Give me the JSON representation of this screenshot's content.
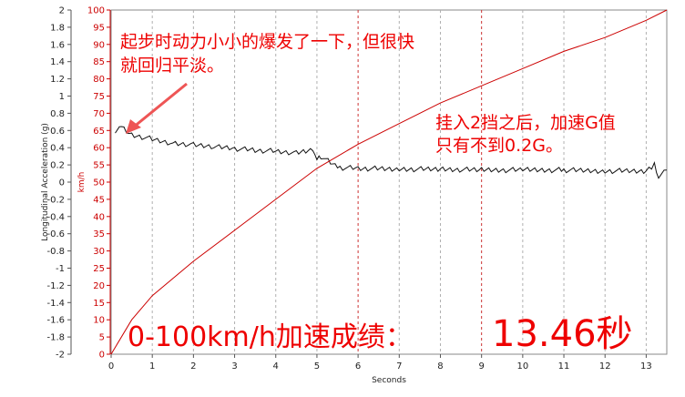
{
  "chart_data": {
    "type": "line",
    "xlabel": "Seconds",
    "xlim": [
      0,
      13.5
    ],
    "x_ticks": [
      "0",
      "1",
      "2",
      "3",
      "4",
      "5",
      "6",
      "7",
      "8",
      "9",
      "10",
      "11",
      "12",
      "13"
    ],
    "y_left": {
      "label": "Longitudinal Acceleration (g)",
      "range": [
        -2,
        2
      ],
      "ticks": [
        "2",
        "1.8",
        "1.6",
        "1.4",
        "1.2",
        "1",
        "0.8",
        "0.6",
        "0.4",
        "0.2",
        "0",
        "-0.2",
        "-0.4",
        "-0.6",
        "-0.8",
        "-1",
        "-1.2",
        "-1.4",
        "-1.6",
        "-1.8",
        "-2"
      ]
    },
    "y_right": {
      "label": "km/h",
      "range": [
        0,
        100
      ],
      "ticks": [
        "100",
        "95",
        "90",
        "85",
        "80",
        "75",
        "70",
        "65",
        "60",
        "55",
        "50",
        "45",
        "40",
        "35",
        "30",
        "25",
        "20",
        "15",
        "10",
        "5",
        "0"
      ]
    },
    "grid": {
      "vertical_dashed": true,
      "red_dashed_verticals": [
        6,
        9
      ]
    },
    "series": [
      {
        "axis": "left",
        "color": "#111111",
        "x": [
          0.1,
          0.25,
          0.5,
          1.0,
          1.5,
          2.0,
          2.5,
          3.0,
          3.5,
          4.0,
          4.5,
          4.9,
          5.0,
          5.1,
          5.5,
          6.0,
          7.0,
          8.0,
          9.0,
          10.0,
          11.0,
          12.0,
          13.0,
          13.2,
          13.3,
          13.5
        ],
        "values": [
          0.6,
          0.65,
          0.55,
          0.5,
          0.45,
          0.43,
          0.41,
          0.39,
          0.37,
          0.36,
          0.34,
          0.38,
          0.25,
          0.3,
          0.17,
          0.16,
          0.15,
          0.15,
          0.14,
          0.14,
          0.14,
          0.13,
          0.13,
          0.2,
          0.06,
          0.14
        ]
      },
      {
        "axis": "right",
        "color": "#cc0000",
        "x": [
          0,
          0.5,
          1,
          2,
          3,
          4,
          5,
          6,
          7,
          8,
          9,
          10,
          11,
          12,
          13,
          13.5
        ],
        "values": [
          0,
          10,
          17,
          27,
          36,
          45,
          54,
          61,
          67,
          73,
          78,
          83,
          88,
          92,
          97,
          100
        ]
      }
    ],
    "annotations": {
      "top_left_line1": "起步时动力小小的爆发了一下，但很快",
      "top_left_line2": "就回归平淡。",
      "right_line1": "挂入2挡之后，加速G值",
      "right_line2": "只有不到0.2G。",
      "bottom_prefix": "0-100km/h加速成绩：",
      "bottom_value": "13.46秒"
    },
    "colors": {
      "accent": "#ee0000",
      "acceleration": "#111111",
      "speed": "#cc0000"
    }
  }
}
